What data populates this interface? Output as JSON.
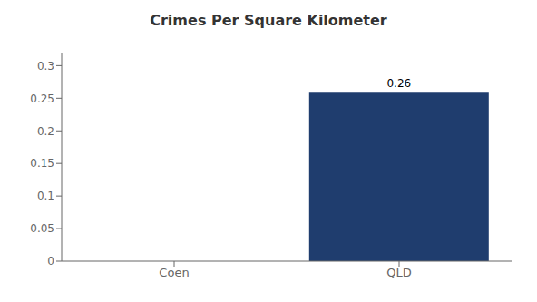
{
  "chart_data": {
    "type": "bar",
    "title": "Crimes Per Square Kilometer",
    "categories": [
      "Coen",
      "QLD"
    ],
    "values": [
      0,
      0.26
    ],
    "color": "#1f3d6e",
    "ylim": [
      0,
      0.32
    ],
    "yticks": [
      0,
      0.05,
      0.1,
      0.15,
      0.2,
      0.25,
      0.3
    ],
    "grid": false,
    "data_labels": true
  }
}
